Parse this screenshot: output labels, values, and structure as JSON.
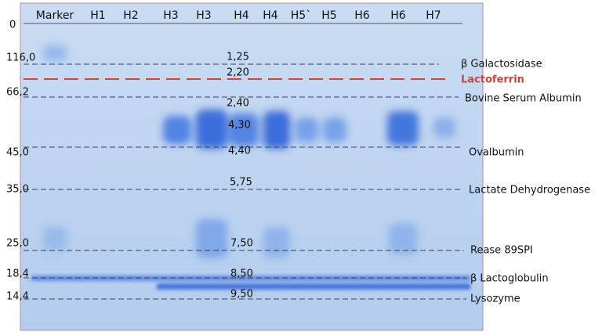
{
  "lanes": [
    "Marker",
    "H1",
    "H2",
    "H3",
    "H3",
    "H4",
    "H4",
    "H5`",
    "H5",
    "H6",
    "H6",
    "H7"
  ],
  "marker_weights": [
    "0",
    "116,0",
    "66,2",
    "45,0",
    "35,0",
    "25,0",
    "18,4",
    "14,4"
  ],
  "lane_annotations": [
    "1,25",
    "2,20",
    "2,40",
    "4,30",
    "4,40",
    "5,75",
    "7,50",
    "8,50",
    "9,50"
  ],
  "proteins": [
    "β Galactosidase",
    "Lactoferrin",
    "Bovine Serum Albumin",
    "Ovalbumin",
    "Lactate Dehydrogenase",
    "Rease 89SPI",
    "β Lactoglobulin",
    "Lysozyme"
  ]
}
